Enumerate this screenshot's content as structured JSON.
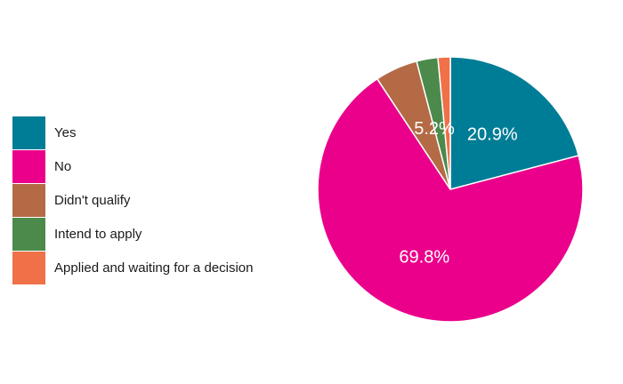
{
  "chart_data": {
    "type": "pie",
    "title": "",
    "legend_position": "left",
    "categories": [
      "Yes",
      "No",
      "Didn't qualify",
      "Intend to apply",
      "Applied and waiting for a decision"
    ],
    "values": [
      20.9,
      69.8,
      5.2,
      2.6,
      1.5
    ],
    "colors": [
      "#007d96",
      "#ea008b",
      "#b36a45",
      "#4b8a4b",
      "#f07048"
    ],
    "data_labels": [
      "20.9%",
      "69.8%",
      "5.2%",
      "",
      ""
    ],
    "start": "12 o'clock",
    "direction": "clockwise"
  }
}
